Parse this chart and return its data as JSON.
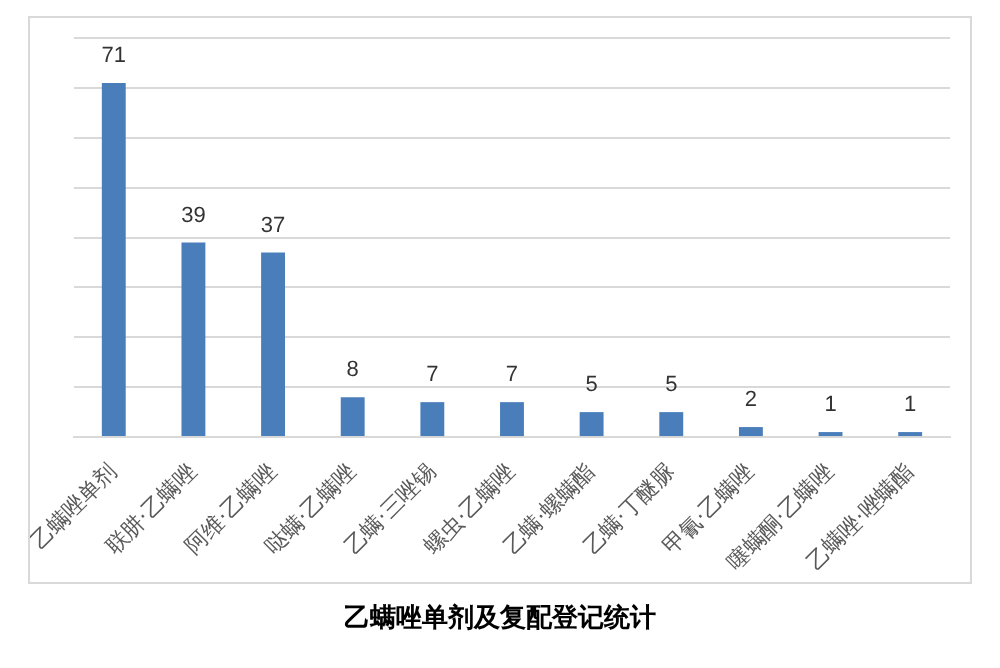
{
  "chart_data": {
    "type": "bar",
    "title": "乙螨唑单剂及复配登记统计",
    "categories": [
      "乙螨唑单剂",
      "联肼·乙螨唑",
      "阿维·乙螨唑",
      "哒螨·乙螨唑",
      "乙螨·三唑锡",
      "螺虫·乙螨唑",
      "乙螨·螺螨酯",
      "乙螨·丁醚脲",
      "甲氰·乙螨唑",
      "噻螨酮·乙螨唑",
      "乙螨唑·唑螨酯"
    ],
    "values": [
      71,
      39,
      37,
      8,
      7,
      7,
      5,
      5,
      2,
      1,
      1
    ],
    "color": "#4a7ebb",
    "ylim": [
      0,
      80
    ],
    "yticks": [
      {
        "value": 0,
        "label": null
      },
      {
        "value": 10,
        "label": null
      },
      {
        "value": 20,
        "label": null
      },
      {
        "value": 30,
        "label": null
      },
      {
        "value": 40,
        "label": null
      },
      {
        "value": 50,
        "label": null
      },
      {
        "value": 60,
        "label": null
      },
      {
        "value": 70,
        "label": null
      },
      {
        "value": 80,
        "label": null
      }
    ],
    "grid": "y",
    "tick_labels": "x",
    "data_labels": true,
    "legend": false
  }
}
